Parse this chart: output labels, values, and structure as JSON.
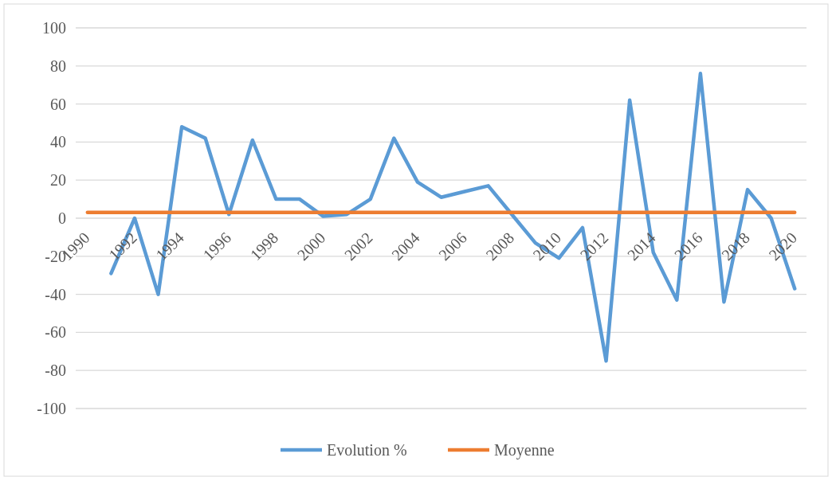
{
  "chart_data": {
    "type": "line",
    "categories": [
      "1990",
      null,
      "1992",
      null,
      "1994",
      null,
      "1996",
      null,
      "1998",
      null,
      "2000",
      null,
      "2002",
      null,
      "2004",
      null,
      "2006",
      null,
      "2008",
      null,
      "2010",
      null,
      "2012",
      null,
      "2014",
      null,
      "2016",
      null,
      "2018",
      null,
      "2020"
    ],
    "series": [
      {
        "name": "Evolution %",
        "color": "#5b9bd5",
        "values": [
          null,
          -29,
          0,
          -40,
          48,
          42,
          2,
          41,
          10,
          10,
          1,
          2,
          10,
          42,
          19,
          11,
          14,
          17,
          2,
          -13,
          -21,
          -5,
          -75,
          62,
          -18,
          -43,
          76,
          -44,
          15,
          0,
          -37
        ]
      },
      {
        "name": "Moyenne",
        "color": "#ed7d31",
        "values": [
          3,
          3,
          3,
          3,
          3,
          3,
          3,
          3,
          3,
          3,
          3,
          3,
          3,
          3,
          3,
          3,
          3,
          3,
          3,
          3,
          3,
          3,
          3,
          3,
          3,
          3,
          3,
          3,
          3,
          3,
          3
        ]
      }
    ],
    "ylim": [
      -100,
      100
    ],
    "yticks": [
      -100,
      -80,
      -60,
      -40,
      -20,
      0,
      20,
      40,
      60,
      80,
      100
    ],
    "grid": "y",
    "legend": "bottom",
    "marker": "none",
    "line_style": "solid"
  }
}
